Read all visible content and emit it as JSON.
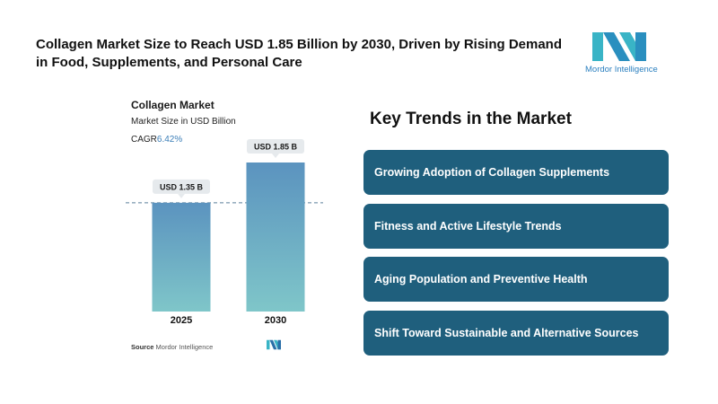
{
  "header": {
    "headline": "Collagen Market Size to Reach USD 1.85 Billion by 2030, Driven by Rising Demand in Food, Supplements, and Personal Care",
    "brand_name": "Mordor Intelligence"
  },
  "colors": {
    "accent": "#1f5f7d",
    "bar_top": "#5b93bf",
    "bar_bottom": "#7fc6c9",
    "logo": "#39b4c6"
  },
  "chart_data": {
    "type": "bar",
    "title": "Collagen Market",
    "subtitle": "Market Size in USD Billion",
    "cagr_label": "CAGR",
    "cagr_value": "6.42%",
    "categories": [
      "2025",
      "2030"
    ],
    "values": [
      1.35,
      1.85
    ],
    "value_labels": [
      "USD 1.35 B",
      "USD 1.85 B"
    ],
    "ylim": [
      0,
      1.85
    ],
    "reference_line": 1.35,
    "grid": false,
    "source_label": "Source",
    "source_text": "Mordor Intelligence"
  },
  "trends": {
    "heading": "Key Trends in the Market",
    "items": [
      "Growing Adoption of Collagen Supplements",
      "Fitness and Active Lifestyle Trends",
      "Aging Population and Preventive Health",
      "Shift Toward Sustainable and Alternative Sources"
    ]
  }
}
